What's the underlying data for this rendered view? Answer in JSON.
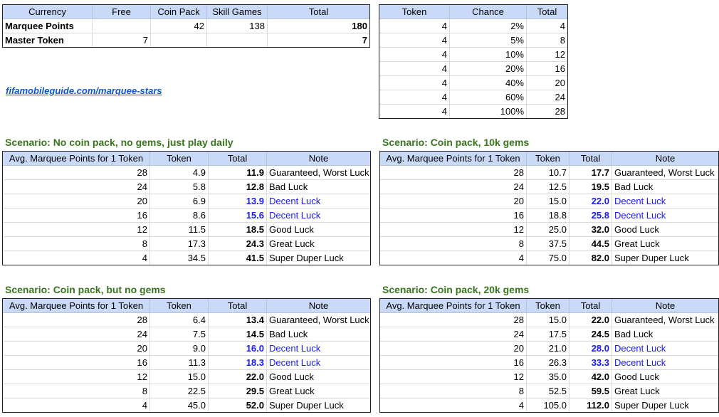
{
  "currency": {
    "headers": [
      "Currency",
      "Free",
      "Coin Pack",
      "Skill Games",
      "Total"
    ],
    "rows": [
      [
        "Marquee Points",
        "",
        "42",
        "138",
        "180"
      ],
      [
        "Master Token",
        "7",
        "",
        "",
        "7"
      ]
    ]
  },
  "link_text": "fifamobileguide.com/marquee-stars",
  "token_table": {
    "headers": [
      "Token",
      "Chance",
      "Total"
    ],
    "rows": [
      [
        "4",
        "2%",
        "4"
      ],
      [
        "4",
        "5%",
        "8"
      ],
      [
        "4",
        "10%",
        "12"
      ],
      [
        "4",
        "20%",
        "16"
      ],
      [
        "4",
        "40%",
        "20"
      ],
      [
        "4",
        "60%",
        "24"
      ],
      [
        "4",
        "100%",
        "28"
      ]
    ]
  },
  "scenario_headers": [
    "Avg. Marquee Points for 1 Token",
    "Token",
    "Total",
    "Note"
  ],
  "scenarios": [
    {
      "title": "Scenario: No coin pack, no gems, just play daily",
      "rows": [
        [
          "28",
          "4.9",
          "11.9",
          "Guaranteed, Worst Luck"
        ],
        [
          "24",
          "5.8",
          "12.8",
          "Bad Luck"
        ],
        [
          "20",
          "6.9",
          "13.9",
          "Decent Luck"
        ],
        [
          "16",
          "8.6",
          "15.6",
          "Decent Luck"
        ],
        [
          "12",
          "11.5",
          "18.5",
          "Good Luck"
        ],
        [
          "8",
          "17.3",
          "24.3",
          "Great Luck"
        ],
        [
          "4",
          "34.5",
          "41.5",
          "Super Duper Luck"
        ]
      ]
    },
    {
      "title": "Scenario: Coin pack, 10k gems",
      "rows": [
        [
          "28",
          "10.7",
          "17.7",
          "Guaranteed, Worst Luck"
        ],
        [
          "24",
          "12.5",
          "19.5",
          "Bad Luck"
        ],
        [
          "20",
          "15.0",
          "22.0",
          "Decent Luck"
        ],
        [
          "16",
          "18.8",
          "25.8",
          "Decent Luck"
        ],
        [
          "12",
          "25.0",
          "32.0",
          "Good Luck"
        ],
        [
          "8",
          "37.5",
          "44.5",
          "Great Luck"
        ],
        [
          "4",
          "75.0",
          "82.0",
          "Super Duper Luck"
        ]
      ]
    },
    {
      "title": "Scenario: Coin pack, but no gems",
      "rows": [
        [
          "28",
          "6.4",
          "13.4",
          "Guaranteed, Worst Luck"
        ],
        [
          "24",
          "7.5",
          "14.5",
          "Bad Luck"
        ],
        [
          "20",
          "9.0",
          "16.0",
          "Decent Luck"
        ],
        [
          "16",
          "11.3",
          "18.3",
          "Decent Luck"
        ],
        [
          "12",
          "15.0",
          "22.0",
          "Good Luck"
        ],
        [
          "8",
          "22.5",
          "29.5",
          "Great Luck"
        ],
        [
          "4",
          "45.0",
          "52.0",
          "Super Duper Luck"
        ]
      ]
    },
    {
      "title": "Scenario: Coin pack, 20k gems",
      "rows": [
        [
          "28",
          "15.0",
          "22.0",
          "Guaranteed, Worst Luck"
        ],
        [
          "24",
          "17.5",
          "24.5",
          "Bad Luck"
        ],
        [
          "20",
          "21.0",
          "28.0",
          "Decent Luck"
        ],
        [
          "16",
          "26.3",
          "33.3",
          "Decent Luck"
        ],
        [
          "12",
          "35.0",
          "42.0",
          "Good Luck"
        ],
        [
          "8",
          "52.5",
          "59.5",
          "Great Luck"
        ],
        [
          "4",
          "105.0",
          "112.0",
          "Super Duper Luck"
        ]
      ]
    }
  ],
  "colors": {
    "header_fill": "#c9daf8",
    "title_green": "#38761d",
    "decent_blue": "#1a1aff",
    "link_blue": "#1155cc"
  }
}
